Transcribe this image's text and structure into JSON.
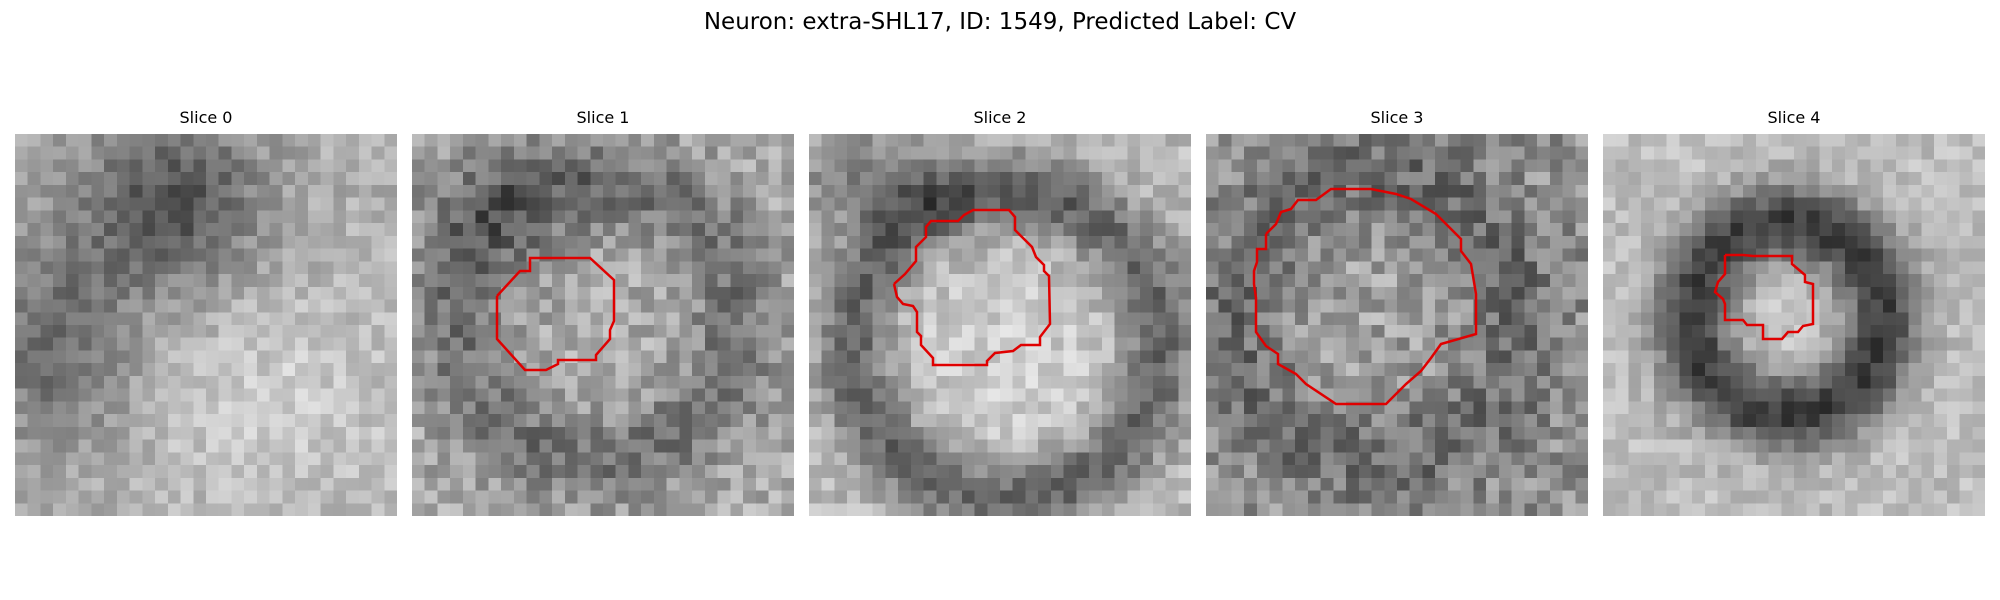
{
  "figure": {
    "title": "Neuron: extra-SHL17, ID: 1549, Predicted Label: CV"
  },
  "slices": [
    {
      "title": "Slice 0",
      "has_contour": false
    },
    {
      "title": "Slice 1",
      "has_contour": true
    },
    {
      "title": "Slice 2",
      "has_contour": true
    },
    {
      "title": "Slice 3",
      "has_contour": true
    },
    {
      "title": "Slice 4",
      "has_contour": true
    }
  ],
  "contour_color": "#e00000"
}
